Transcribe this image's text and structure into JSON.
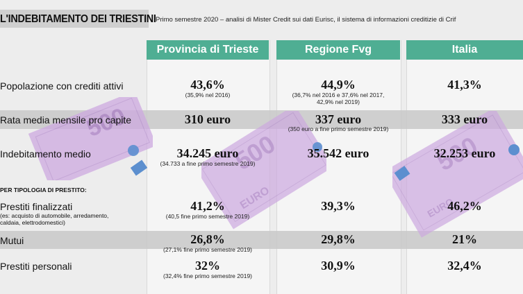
{
  "header": {
    "title": "L'INDEBITAMENTO DEI TRIESTINI",
    "subtitle": "Primo semestre 2020 – analisi di Mister Credit sui dati Eurisc, il sistema di informazioni creditizie di Crif"
  },
  "columns": [
    "Provincia di Trieste",
    "Regione Fvg",
    "Italia"
  ],
  "section_label": "PER TIPOLOGIA DI PRESTITO:",
  "rows": [
    {
      "label": "Popolazione con crediti attivi",
      "cells": [
        {
          "value": "43,6%",
          "note": "(35,9% nel 2016)"
        },
        {
          "value": "44,9%",
          "note": "(36,7% nel 2016 e 37,6% nel 2017, 42,9% nel 2019)"
        },
        {
          "value": "41,3%",
          "note": ""
        }
      ]
    },
    {
      "label": "Rata media mensile pro capite",
      "cells": [
        {
          "value": "310 euro",
          "note": ""
        },
        {
          "value": "337 euro",
          "note": "(350 euro a fine primo semestre 2019)"
        },
        {
          "value": "333 euro",
          "note": ""
        }
      ]
    },
    {
      "label": "Indebitamento medio",
      "cells": [
        {
          "value": "34.245 euro",
          "note": "(34.733 a fine primo semestre 2019)"
        },
        {
          "value": "35.542 euro",
          "note": ""
        },
        {
          "value": "32.253 euro",
          "note": ""
        }
      ]
    },
    {
      "label": "Prestiti finalizzati",
      "sublabel": "(es: acquisto di automobile, arredamento, caldaia, elettrodomestici)",
      "cells": [
        {
          "value": "41,2%",
          "note": "(40,5 fine primo semestre 2019)"
        },
        {
          "value": "39,3%",
          "note": ""
        },
        {
          "value": "46,2%",
          "note": ""
        }
      ]
    },
    {
      "label": "Mutui",
      "cells": [
        {
          "value": "26,8%",
          "note": "(27,1% fine primo semestre 2019)"
        },
        {
          "value": "29,8%",
          "note": ""
        },
        {
          "value": "21%",
          "note": ""
        }
      ]
    },
    {
      "label": "Prestiti personali",
      "cells": [
        {
          "value": "32%",
          "note": "(32,4% fine primo semestre 2019)"
        },
        {
          "value": "30,9%",
          "note": ""
        },
        {
          "value": "32,4%",
          "note": ""
        }
      ]
    }
  ],
  "banknote": {
    "denomination": "500",
    "text": "EURO",
    "color": "#c9a6dd"
  },
  "colors": {
    "header_green": "#4fae93",
    "band_gray": "#c8c8c8"
  }
}
